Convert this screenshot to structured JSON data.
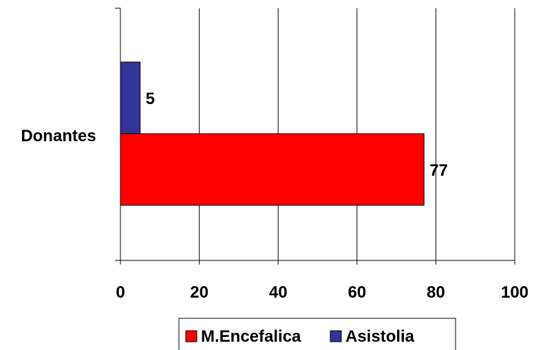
{
  "chart_data": {
    "type": "bar",
    "orientation": "horizontal",
    "categories": [
      "Donantes"
    ],
    "series": [
      {
        "name": "M.Encefalica",
        "values": [
          77
        ],
        "color": "#FF0000"
      },
      {
        "name": "Asistolia",
        "values": [
          5
        ],
        "color": "#333399"
      }
    ],
    "xlim": [
      0,
      100
    ],
    "x_ticks": [
      0,
      20,
      40,
      60,
      80,
      100
    ],
    "title": "",
    "xlabel": "",
    "ylabel": "",
    "grid": "vertical",
    "legend_position": "bottom"
  }
}
